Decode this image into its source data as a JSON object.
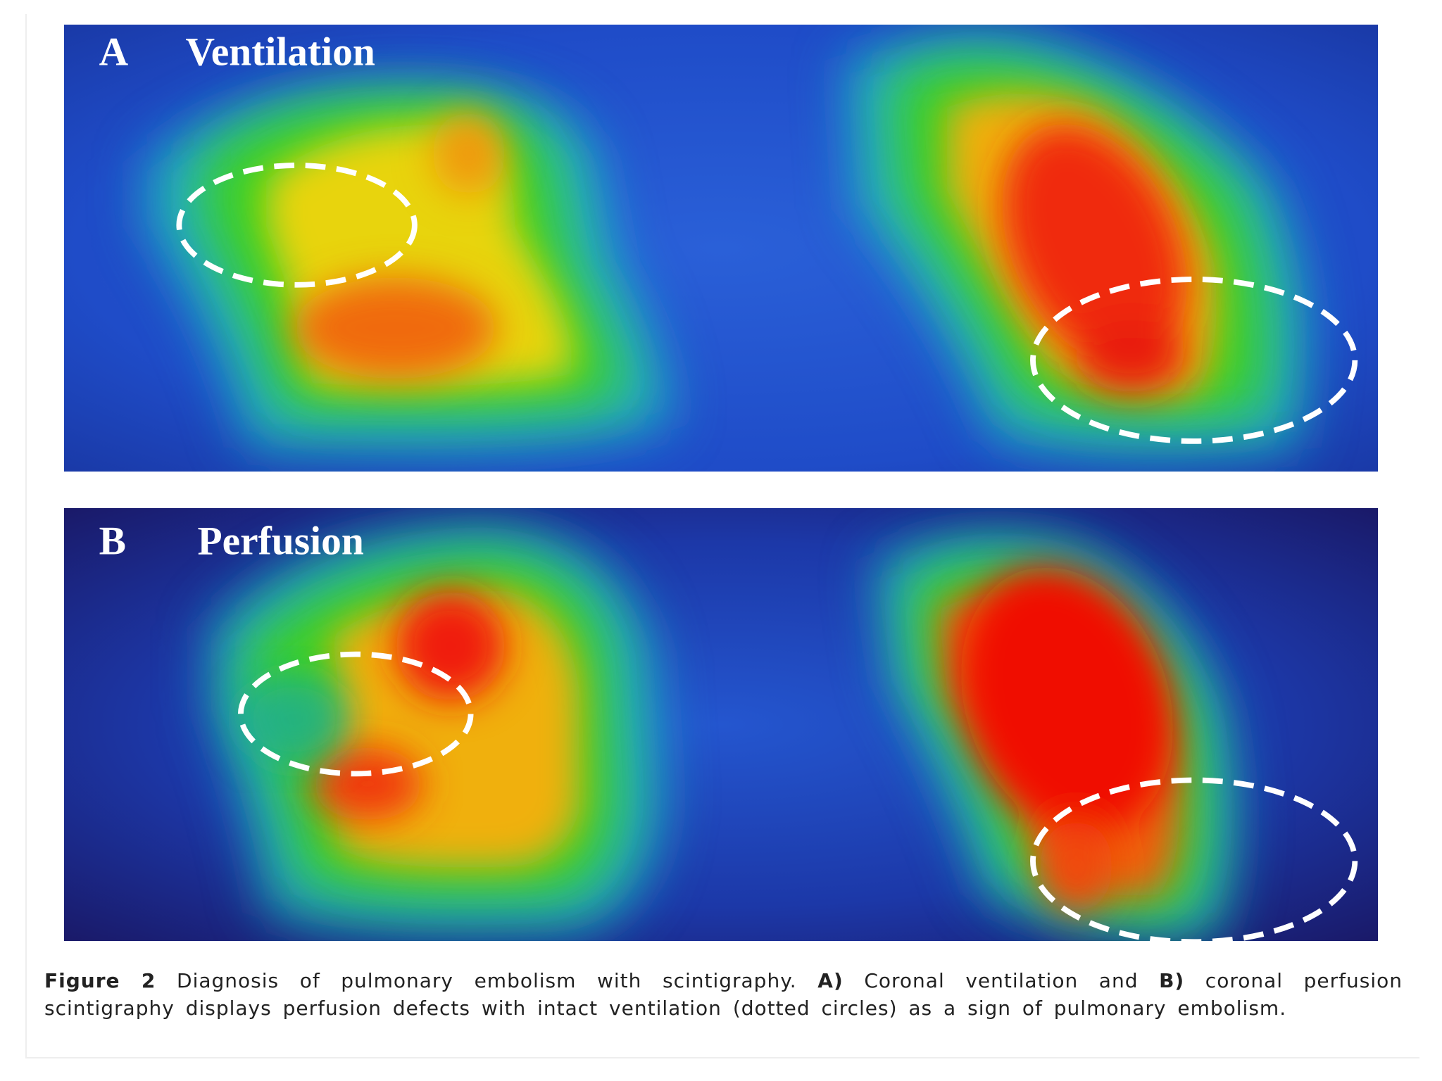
{
  "figure": {
    "panels": [
      {
        "letter": "A",
        "title": "Ventilation"
      },
      {
        "letter": "B",
        "title": "Perfusion"
      }
    ],
    "caption": {
      "label": "Figure 2",
      "text_1": "Diagnosis of pulmonary embolism with scintigraphy.",
      "ref_a": "A)",
      "text_2": "Coronal ventilation and",
      "ref_b": "B)",
      "text_3": "coronal perfusion scintigraphy displays perfusion defects with intact ventilation (dotted circles) as a sign of pulmonary embolism."
    }
  }
}
